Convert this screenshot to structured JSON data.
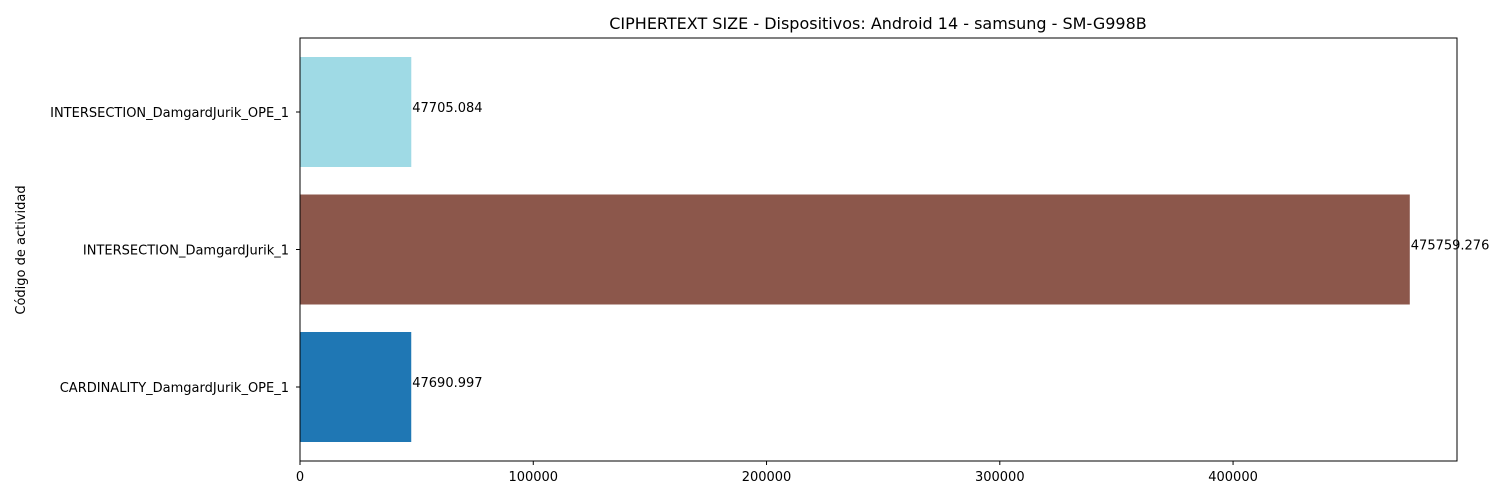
{
  "chart_data": {
    "type": "bar",
    "orientation": "horizontal",
    "title": "CIPHERTEXT SIZE - Dispositivos: Android 14 - samsung - SM-G998B",
    "xlabel": "",
    "ylabel": "Código de actividad",
    "xlim": [
      0,
      496000
    ],
    "xticks": [
      0,
      100000,
      200000,
      300000,
      400000
    ],
    "grid": false,
    "legend": "none",
    "bars": [
      {
        "category": "INTERSECTION_DamgardJurik_OPE_1",
        "value": 47705.084,
        "label": "47705.084",
        "color": "#9fdae5"
      },
      {
        "category": "INTERSECTION_DamgardJurik_1",
        "value": 475759.276,
        "label": "475759.276",
        "color": "#8c574b"
      },
      {
        "category": "CARDINALITY_DamgardJurik_OPE_1",
        "value": 47690.997,
        "label": "47690.997",
        "color": "#1f77b4"
      }
    ]
  }
}
